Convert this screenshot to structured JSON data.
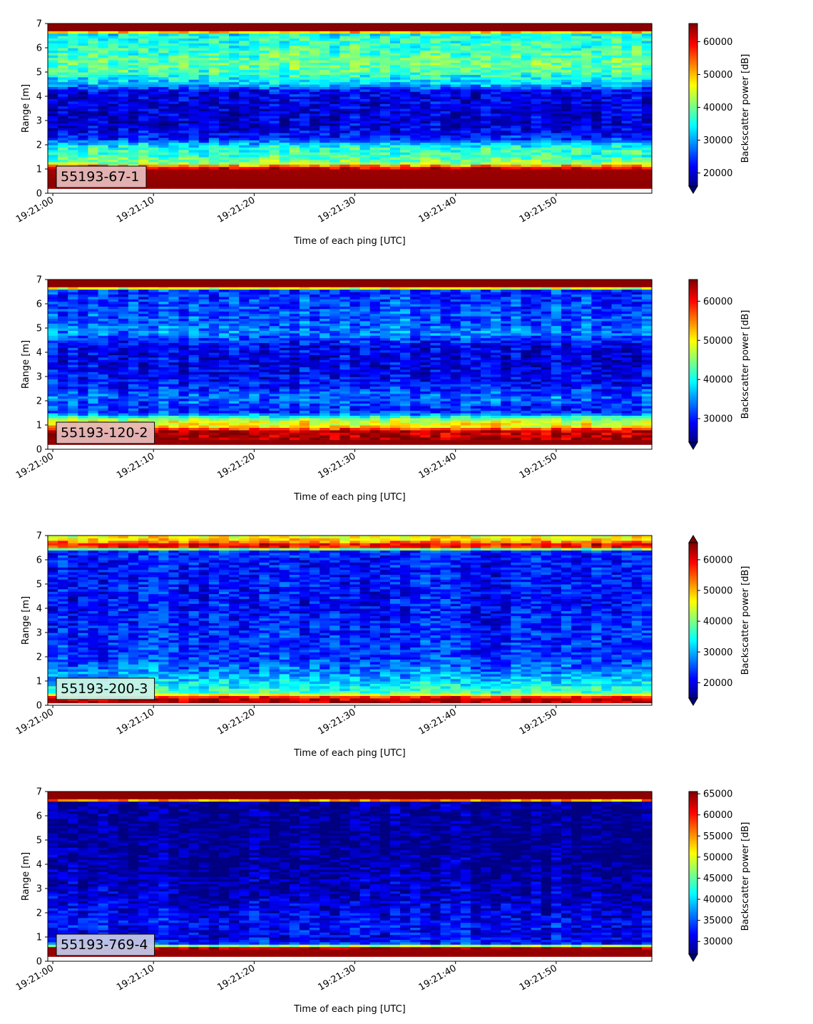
{
  "chart_data": [
    {
      "type": "heatmap",
      "panel_label": "55193-67-1",
      "xlabel": "Time of each ping [UTC]",
      "ylabel": "Range [m]",
      "x_ticks": [
        "19:21:00",
        "19:21:10",
        "19:21:20",
        "19:21:30",
        "19:21:40",
        "19:21:50"
      ],
      "x_range": [
        "19:20:59.5",
        "19:21:59.5"
      ],
      "y_ticks": [
        0,
        1,
        2,
        3,
        4,
        5,
        6,
        7
      ],
      "ylim": [
        0,
        7
      ],
      "colorbar_label": "Backscatter power [dB]",
      "colorbar_ticks": [
        20000,
        30000,
        40000,
        50000,
        60000
      ],
      "clim": [
        16000,
        65535
      ],
      "colorbar_extend": "min",
      "colormap": "jet",
      "profile": {
        "range_m": [
          0.0,
          0.2,
          0.25,
          0.3,
          1.0,
          1.1,
          1.25,
          1.5,
          1.9,
          2.1,
          2.3,
          2.8,
          3.5,
          4.2,
          4.5,
          5.0,
          5.3,
          6.0,
          6.5,
          6.6,
          6.7,
          7.0
        ],
        "power": [
          null,
          63000,
          64500,
          65000,
          64000,
          58000,
          42000,
          38000,
          36000,
          30000,
          23000,
          20000,
          20000,
          21000,
          31000,
          38000,
          40000,
          37000,
          36000,
          32000,
          65000,
          65000
        ]
      }
    },
    {
      "type": "heatmap",
      "panel_label": "55193-120-2",
      "xlabel": "Time of each ping [UTC]",
      "ylabel": "Range [m]",
      "x_ticks": [
        "19:21:00",
        "19:21:10",
        "19:21:20",
        "19:21:30",
        "19:21:40",
        "19:21:50"
      ],
      "x_range": [
        "19:20:59.5",
        "19:21:59.5"
      ],
      "y_ticks": [
        0,
        1,
        2,
        3,
        4,
        5,
        6,
        7
      ],
      "ylim": [
        0,
        7
      ],
      "colorbar_label": "Backscatter power [dB]",
      "colorbar_ticks": [
        30000,
        40000,
        50000,
        60000
      ],
      "clim": [
        24000,
        65535
      ],
      "colorbar_extend": "min",
      "colormap": "jet",
      "profile": {
        "range_m": [
          0.0,
          0.2,
          0.25,
          0.8,
          0.9,
          1.2,
          1.4,
          1.5,
          1.7,
          2.2,
          2.6,
          3.5,
          4.3,
          4.8,
          5.2,
          6.0,
          6.5,
          6.6,
          6.7,
          7.0
        ],
        "power": [
          null,
          64000,
          65000,
          63000,
          52000,
          48000,
          38000,
          32000,
          31000,
          34000,
          30000,
          28000,
          29000,
          35000,
          33000,
          32000,
          31000,
          32000,
          65000,
          65000
        ]
      }
    },
    {
      "type": "heatmap",
      "panel_label": "55193-200-3",
      "xlabel": "Time of each ping [UTC]",
      "ylabel": "Range [m]",
      "x_ticks": [
        "19:21:00",
        "19:21:10",
        "19:21:20",
        "19:21:30",
        "19:21:40",
        "19:21:50"
      ],
      "x_range": [
        "19:20:59.5",
        "19:21:59.5"
      ],
      "y_ticks": [
        0,
        1,
        2,
        3,
        4,
        5,
        6,
        7
      ],
      "ylim": [
        0,
        7
      ],
      "colorbar_label": "Backscatter power [dB]",
      "colorbar_ticks": [
        20000,
        30000,
        40000,
        50000,
        60000
      ],
      "clim": [
        15000,
        65535
      ],
      "colorbar_extend": "both",
      "colormap": "jet",
      "profile": {
        "range_m": [
          0.0,
          0.1,
          0.2,
          0.35,
          0.5,
          0.8,
          1.2,
          1.5,
          2.0,
          3.0,
          4.0,
          5.0,
          6.0,
          6.4,
          6.5,
          6.6,
          6.8,
          7.0
        ],
        "power": [
          null,
          62000,
          65000,
          58000,
          38000,
          34000,
          30000,
          27000,
          24000,
          23000,
          22000,
          22000,
          22000,
          24000,
          55000,
          62000,
          50000,
          45000
        ]
      }
    },
    {
      "type": "heatmap",
      "panel_label": "55193-769-4",
      "xlabel": "Time of each ping [UTC]",
      "ylabel": "Range [m]",
      "x_ticks": [
        "19:21:00",
        "19:21:10",
        "19:21:20",
        "19:21:30",
        "19:21:40",
        "19:21:50"
      ],
      "x_range": [
        "19:20:59.5",
        "19:21:59.5"
      ],
      "y_ticks": [
        0,
        1,
        2,
        3,
        4,
        5,
        6,
        7
      ],
      "ylim": [
        0,
        7
      ],
      "colorbar_label": "Backscatter power [dB]",
      "colorbar_ticks": [
        30000,
        35000,
        40000,
        45000,
        50000,
        55000,
        60000,
        65000
      ],
      "clim": [
        27000,
        65535
      ],
      "colorbar_extend": "min",
      "colormap": "jet",
      "profile": {
        "range_m": [
          0.0,
          0.2,
          0.3,
          0.6,
          0.65,
          0.7,
          1.0,
          1.5,
          2.0,
          2.5,
          3.0,
          4.0,
          5.0,
          6.0,
          6.6,
          6.65,
          6.7,
          7.0
        ],
        "power": [
          null,
          64000,
          65000,
          64000,
          48000,
          34000,
          31000,
          32000,
          31000,
          30000,
          29000,
          28000,
          27500,
          27500,
          28000,
          55000,
          65000,
          65000
        ]
      }
    }
  ]
}
